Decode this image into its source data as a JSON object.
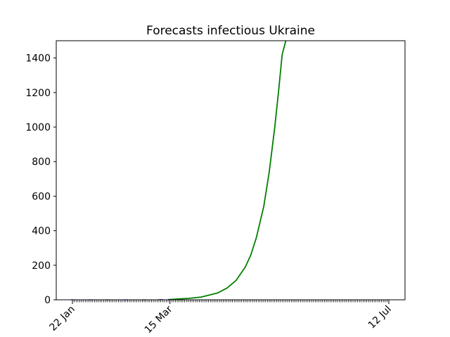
{
  "chart_data": {
    "type": "line",
    "title": "Forecasts infectious Ukraine",
    "xlabel": "",
    "ylabel": "",
    "x_start": "2020-01-22",
    "x_end": "2020-07-12",
    "x_tick_labels": [
      {
        "date": "2020-01-22",
        "label": "22 Jan"
      },
      {
        "date": "2020-03-15",
        "label": "15 Mar"
      },
      {
        "date": "2020-07-12",
        "label": "12 Jul"
      }
    ],
    "ylim": [
      0,
      1500
    ],
    "y_ticks": [
      0,
      200,
      400,
      600,
      800,
      1000,
      1200,
      1400
    ],
    "grid": false,
    "series": [
      {
        "color": "#0000ff",
        "style": "markers",
        "x": [
          "2020-01-22",
          "2020-02-01",
          "2020-02-10",
          "2020-02-20",
          "2020-03-01",
          "2020-03-10",
          "2020-03-15",
          "2020-03-20"
        ],
        "values": [
          0,
          0,
          0,
          0,
          0,
          1,
          2,
          3
        ]
      },
      {
        "color": "#008000",
        "style": "line",
        "x": [
          "2020-03-15",
          "2020-03-25",
          "2020-04-01",
          "2020-04-10",
          "2020-04-15",
          "2020-04-20",
          "2020-04-25",
          "2020-04-28",
          "2020-05-01",
          "2020-05-05",
          "2020-05-08",
          "2020-05-11",
          "2020-05-13",
          "2020-05-15",
          "2020-05-17"
        ],
        "values": [
          2,
          8,
          16,
          40,
          68,
          112,
          190,
          260,
          360,
          540,
          740,
          1000,
          1200,
          1420,
          1500
        ]
      }
    ]
  }
}
